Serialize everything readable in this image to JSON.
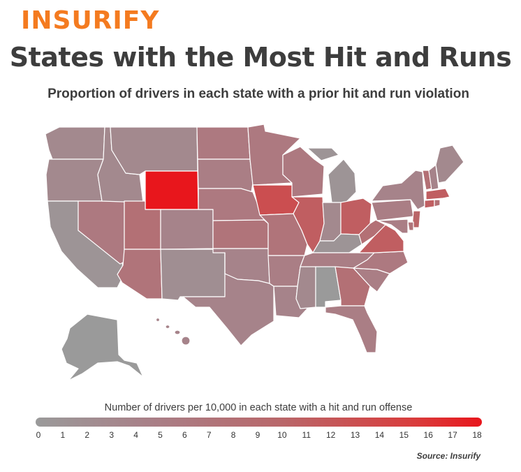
{
  "brand": {
    "logo": "INSURIFY",
    "color": "#f47b20"
  },
  "header": {
    "title": "States with the Most Hit and Runs",
    "subtitle": "Proportion of drivers in each state with a prior hit and run violation"
  },
  "legend": {
    "title": "Number of drivers per 10,000 in each state with a hit and run offense",
    "ticks": [
      "0",
      "1",
      "2",
      "3",
      "4",
      "5",
      "6",
      "7",
      "8",
      "9",
      "10",
      "11",
      "12",
      "13",
      "14",
      "15",
      "16",
      "17",
      "18"
    ],
    "min": 0,
    "max": 18,
    "colors": {
      "low": "#9a9a9a",
      "high": "#e8161c"
    }
  },
  "source": "Source: Insurify",
  "map_data": {
    "unit": "drivers per 10,000",
    "states": {
      "WA": 3,
      "OR": 3,
      "CA": 1,
      "NV": 6,
      "ID": 3,
      "MT": 3,
      "WY": 18,
      "UT": 8,
      "AZ": 7,
      "CO": 4,
      "NM": 2,
      "ND": 6,
      "SD": 5,
      "NE": 6,
      "KS": 7,
      "OK": 4,
      "TX": 4,
      "MN": 6,
      "IA": 13,
      "MO": 7,
      "AR": 5,
      "LA": 4,
      "WI": 6,
      "IL": 11,
      "MI": 1,
      "IN": 3,
      "OH": 11,
      "KY": 1,
      "TN": 5,
      "MS": 3,
      "AL": 0,
      "GA": 8,
      "FL": 5,
      "SC": 5,
      "NC": 6,
      "VA": 11,
      "WV": 8,
      "PA": 5,
      "NY": 4,
      "VT": 8,
      "NH": 4,
      "ME": 3,
      "MA": 11,
      "CT": 11,
      "RI": 8,
      "NJ": 10,
      "DE": 7,
      "MD": 5,
      "AK": 0,
      "HI": 4
    }
  }
}
